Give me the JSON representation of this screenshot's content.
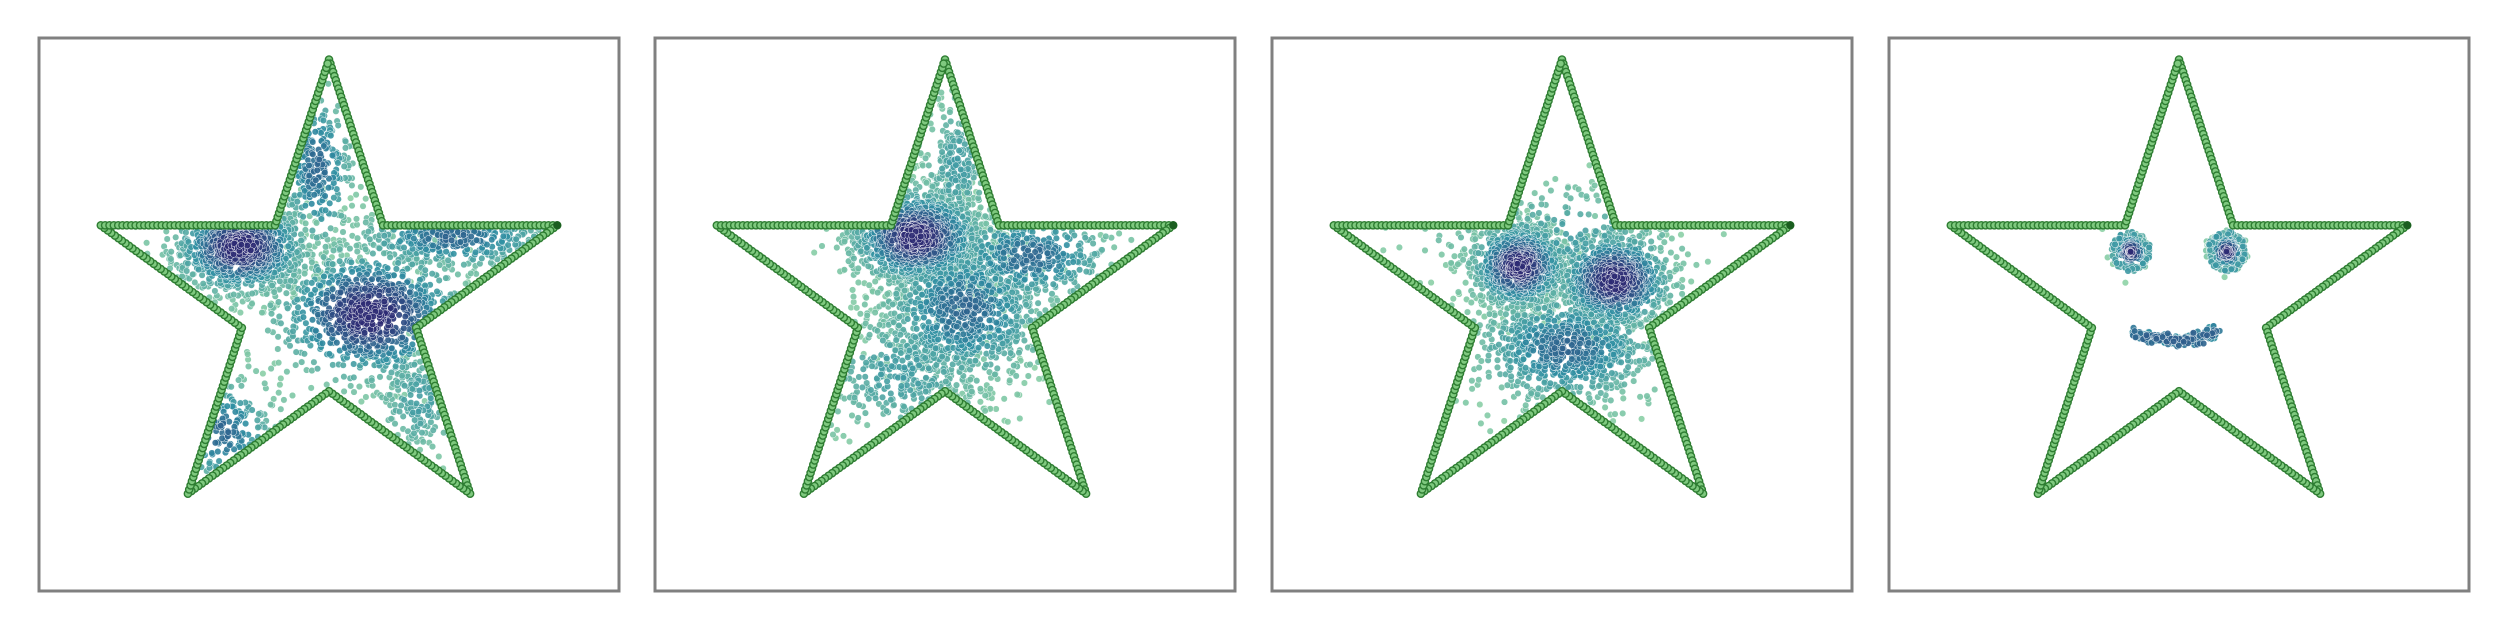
{
  "figure": {
    "colors": {
      "outline_fill": "#7fc97f",
      "outline_edge": "#2e7d32",
      "outline_dark": "#1b5e20",
      "density_low": "#8fd3a7",
      "density_mid": "#2f8fa3",
      "density_high": "#2d2b74",
      "frame": "#808080",
      "background": "#ffffff"
    }
  },
  "chart_data": [
    {
      "type": "scatter",
      "title": "",
      "xlabel": "",
      "ylabel": "",
      "axes_ticks": false,
      "grid": false,
      "legend": "none",
      "outline": {
        "shape": "five-pointed star",
        "vertices": [
          [
            0.0,
            1.0
          ],
          [
            0.225,
            0.309
          ],
          [
            0.951,
            0.309
          ],
          [
            0.363,
            -0.118
          ],
          [
            0.588,
            -0.809
          ],
          [
            0.0,
            -0.382
          ],
          [
            -0.588,
            -0.809
          ],
          [
            -0.363,
            -0.118
          ],
          [
            -0.951,
            0.309
          ],
          [
            -0.225,
            0.309
          ]
        ],
        "points_per_edge": 40
      },
      "clusters": [
        {
          "name": "",
          "center": [
            -0.37,
            0.22
          ],
          "spread": [
            0.14,
            0.1
          ],
          "count": 1100,
          "peak_color": "density_high"
        },
        {
          "name": "",
          "center": [
            0.17,
            -0.06
          ],
          "spread": [
            0.2,
            0.14
          ],
          "count": 1000,
          "peak_color": "density_high"
        },
        {
          "name": "",
          "center": [
            0.52,
            0.26
          ],
          "spread": [
            0.22,
            0.07
          ],
          "count": 500,
          "peak_color": "density_mid"
        },
        {
          "name": "",
          "center": [
            -0.05,
            0.55
          ],
          "spread": [
            0.08,
            0.18
          ],
          "count": 320,
          "peak_color": "density_mid"
        },
        {
          "name": "",
          "center": [
            -0.45,
            -0.55
          ],
          "spread": [
            0.12,
            0.12
          ],
          "count": 320,
          "peak_color": "density_mid"
        },
        {
          "name": "",
          "center": [
            0.38,
            -0.42
          ],
          "spread": [
            0.1,
            0.12
          ],
          "count": 220,
          "peak_color": "density_low"
        }
      ]
    },
    {
      "type": "scatter",
      "title": "",
      "xlabel": "",
      "ylabel": "",
      "axes_ticks": false,
      "grid": false,
      "legend": "none",
      "outline": {
        "shape": "five-pointed star",
        "vertices": [
          [
            0.0,
            1.0
          ],
          [
            0.225,
            0.309
          ],
          [
            0.951,
            0.309
          ],
          [
            0.363,
            -0.118
          ],
          [
            0.588,
            -0.809
          ],
          [
            0.0,
            -0.382
          ],
          [
            -0.588,
            -0.809
          ],
          [
            -0.363,
            -0.118
          ],
          [
            -0.951,
            0.309
          ],
          [
            -0.225,
            0.309
          ]
        ],
        "points_per_edge": 40
      },
      "clusters": [
        {
          "name": "",
          "center": [
            -0.12,
            0.26
          ],
          "spread": [
            0.14,
            0.1
          ],
          "count": 1200,
          "peak_color": "density_high"
        },
        {
          "name": "",
          "center": [
            0.08,
            -0.04
          ],
          "spread": [
            0.18,
            0.16
          ],
          "count": 1000,
          "peak_color": "density_mid"
        },
        {
          "name": "",
          "center": [
            0.35,
            0.18
          ],
          "spread": [
            0.18,
            0.1
          ],
          "count": 450,
          "peak_color": "density_mid"
        },
        {
          "name": "",
          "center": [
            0.05,
            0.55
          ],
          "spread": [
            0.08,
            0.16
          ],
          "count": 300,
          "peak_color": "density_low"
        },
        {
          "name": "",
          "center": [
            -0.18,
            -0.3
          ],
          "spread": [
            0.2,
            0.15
          ],
          "count": 450,
          "peak_color": "density_low"
        }
      ]
    },
    {
      "type": "scatter",
      "title": "",
      "xlabel": "",
      "ylabel": "",
      "axes_ticks": false,
      "grid": false,
      "legend": "none",
      "outline": {
        "shape": "five-pointed star",
        "vertices": [
          [
            0.0,
            1.0
          ],
          [
            0.225,
            0.309
          ],
          [
            0.951,
            0.309
          ],
          [
            0.363,
            -0.118
          ],
          [
            0.588,
            -0.809
          ],
          [
            0.0,
            -0.382
          ],
          [
            -0.588,
            -0.809
          ],
          [
            -0.363,
            -0.118
          ],
          [
            -0.951,
            0.309
          ],
          [
            -0.225,
            0.309
          ]
        ],
        "points_per_edge": 40
      },
      "clusters": [
        {
          "name": "",
          "center": [
            -0.18,
            0.14
          ],
          "spread": [
            0.1,
            0.09
          ],
          "count": 900,
          "peak_color": "density_high"
        },
        {
          "name": "",
          "center": [
            0.22,
            0.08
          ],
          "spread": [
            0.12,
            0.1
          ],
          "count": 900,
          "peak_color": "density_high"
        },
        {
          "name": "",
          "center": [
            0.02,
            -0.2
          ],
          "spread": [
            0.2,
            0.12
          ],
          "count": 800,
          "peak_color": "density_mid"
        },
        {
          "name": "",
          "center": [
            0.0,
            0.25
          ],
          "spread": [
            0.3,
            0.12
          ],
          "count": 300,
          "peak_color": "density_low"
        }
      ]
    },
    {
      "type": "scatter",
      "title": "",
      "xlabel": "",
      "ylabel": "",
      "axes_ticks": false,
      "grid": false,
      "legend": "none",
      "outline": {
        "shape": "five-pointed star",
        "vertices": [
          [
            0.0,
            1.0
          ],
          [
            0.225,
            0.309
          ],
          [
            0.951,
            0.309
          ],
          [
            0.363,
            -0.118
          ],
          [
            0.588,
            -0.809
          ],
          [
            0.0,
            -0.382
          ],
          [
            -0.588,
            -0.809
          ],
          [
            -0.363,
            -0.118
          ],
          [
            -0.951,
            0.309
          ],
          [
            -0.225,
            0.309
          ]
        ],
        "points_per_edge": 40
      },
      "features": [
        {
          "name": "",
          "kind": "ring",
          "center": [
            -0.2,
            0.2
          ],
          "radius": 0.075,
          "count": 70,
          "color": "density_low"
        },
        {
          "name": "",
          "kind": "blob",
          "center": [
            -0.2,
            0.2
          ],
          "spread": [
            0.035,
            0.035
          ],
          "count": 140,
          "color": "density_high"
        },
        {
          "name": "",
          "kind": "ring",
          "center": [
            0.2,
            0.2
          ],
          "radius": 0.075,
          "count": 70,
          "color": "density_low"
        },
        {
          "name": "",
          "kind": "blob",
          "center": [
            0.2,
            0.2
          ],
          "spread": [
            0.035,
            0.035
          ],
          "count": 140,
          "color": "density_high"
        },
        {
          "name": "",
          "kind": "arc",
          "center": [
            0.0,
            -0.12
          ],
          "from_x": -0.2,
          "to_x": 0.17,
          "count": 200,
          "color": "density_mid"
        }
      ]
    }
  ]
}
